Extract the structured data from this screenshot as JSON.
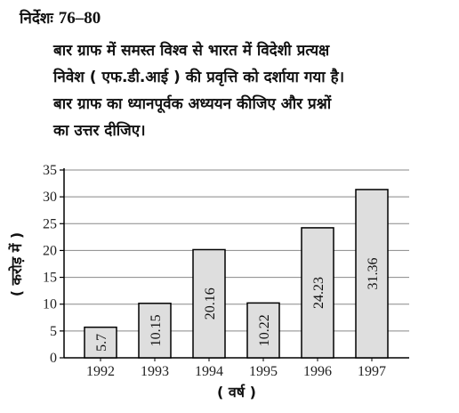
{
  "heading": {
    "label": "निर्देशः",
    "range": "76–80"
  },
  "paragraph_lines": [
    "बार ग्राफ में समस्त विश्व से भारत में विदेशी प्रत्यक्ष",
    "निवेश ( एफ.डी.आई ) की प्रवृत्ति को दर्शाया गया है।",
    "बार ग्राफ का ध्यानपूर्वक अध्ययन कीजिए और प्रश्नों",
    "का उत्तर दीजिए।"
  ],
  "colors": {
    "bar_fill": "#dedede",
    "bar_stroke": "#000000",
    "grid": "#888888"
  },
  "chart_data": {
    "type": "bar",
    "categories": [
      "1992",
      "1993",
      "1994",
      "1995",
      "1996",
      "1997"
    ],
    "values": [
      5.7,
      10.15,
      20.16,
      10.22,
      24.23,
      31.36
    ],
    "data_labels": [
      "5.7",
      "10.15",
      "20.16",
      "10.22",
      "24.23",
      "31.36"
    ],
    "ylim": [
      0,
      35
    ],
    "yticks": [
      "0",
      "5",
      "10",
      "15",
      "20",
      "25",
      "30",
      "35"
    ],
    "xlabel": "( वर्ष )",
    "ylabel": "( करोड़ में )",
    "grid": "horizontal",
    "title": ""
  }
}
